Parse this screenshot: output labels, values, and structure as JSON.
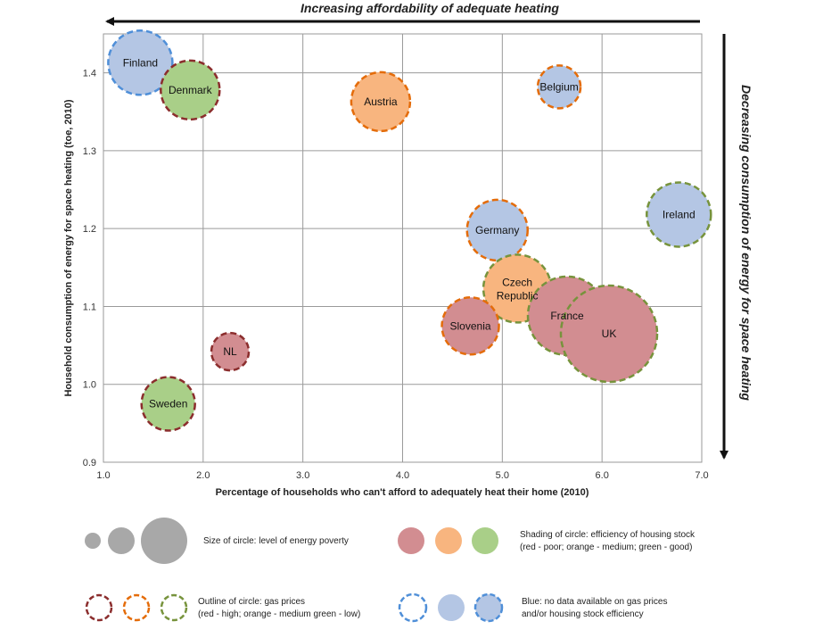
{
  "colors": {
    "fill_red": "#d28d91",
    "fill_orange": "#f8b57f",
    "fill_green": "#a9cf88",
    "fill_blue": "#b4c6e4",
    "fill_gray": "#a8a8a8",
    "outline_red": "#8b2d2d",
    "outline_orange": "#e46c0a",
    "outline_green": "#77933c",
    "outline_blue": "#4f8fd8"
  },
  "chart_data": {
    "type": "scatter",
    "title": "",
    "xlabel": "Percentage of households who can't afford to adequately heat their home (2010)",
    "ylabel": "Household consumption of energy for space heating (toe, 2010)",
    "xlim": [
      1.0,
      7.0
    ],
    "ylim": [
      0.9,
      1.45
    ],
    "xticks": [
      "1.0",
      "2.0",
      "3.0",
      "4.0",
      "5.0",
      "6.0",
      "7.0"
    ],
    "yticks": [
      "0.9",
      "1.0",
      "1.1",
      "1.2",
      "1.3",
      "1.4"
    ],
    "grid": true,
    "top_arrow_label": "Increasing affordability of adequate heating",
    "right_arrow_label": "Decreasing consumption of energy for space heating",
    "points": [
      {
        "label": "Finland",
        "x": 1.37,
        "y": 1.413,
        "size": 36,
        "fill": "blue",
        "outline": "blue"
      },
      {
        "label": "Denmark",
        "x": 1.87,
        "y": 1.378,
        "size": 33,
        "fill": "green",
        "outline": "red"
      },
      {
        "label": "Austria",
        "x": 3.78,
        "y": 1.363,
        "size": 33,
        "fill": "orange",
        "outline": "orange"
      },
      {
        "label": "Belgium",
        "x": 5.57,
        "y": 1.382,
        "size": 24,
        "fill": "blue",
        "outline": "orange"
      },
      {
        "label": "Ireland",
        "x": 6.77,
        "y": 1.218,
        "size": 36,
        "fill": "blue",
        "outline": "green"
      },
      {
        "label": "Germany",
        "x": 4.95,
        "y": 1.198,
        "size": 34,
        "fill": "blue",
        "outline": "orange"
      },
      {
        "label": "Czech Republic",
        "x": 5.15,
        "y": 1.123,
        "size": 38,
        "fill": "orange",
        "outline": "green"
      },
      {
        "label": "France",
        "x": 5.65,
        "y": 1.088,
        "size": 44,
        "fill": "red",
        "outline": "green"
      },
      {
        "label": "UK",
        "x": 6.07,
        "y": 1.065,
        "size": 54,
        "fill": "red",
        "outline": "green"
      },
      {
        "label": "Slovenia",
        "x": 4.68,
        "y": 1.075,
        "size": 32,
        "fill": "red",
        "outline": "orange"
      },
      {
        "label": "NL",
        "x": 2.27,
        "y": 1.042,
        "size": 21,
        "fill": "red",
        "outline": "red"
      },
      {
        "label": "Sweden",
        "x": 1.65,
        "y": 0.975,
        "size": 30,
        "fill": "green",
        "outline": "red"
      }
    ]
  },
  "legend": {
    "size_text": "Size of circle: level of energy poverty",
    "shading_text_1": "Shading of circle: efficiency of housing stock",
    "shading_text_2": "(red - poor; orange - medium; green - good)",
    "outline_text_1": "Outline of circle: gas prices",
    "outline_text_2": "(red - high; orange - medium green - low)",
    "blue_text_1": "Blue: no data available on gas prices",
    "blue_text_2": "and/or housing stock efficiency"
  }
}
